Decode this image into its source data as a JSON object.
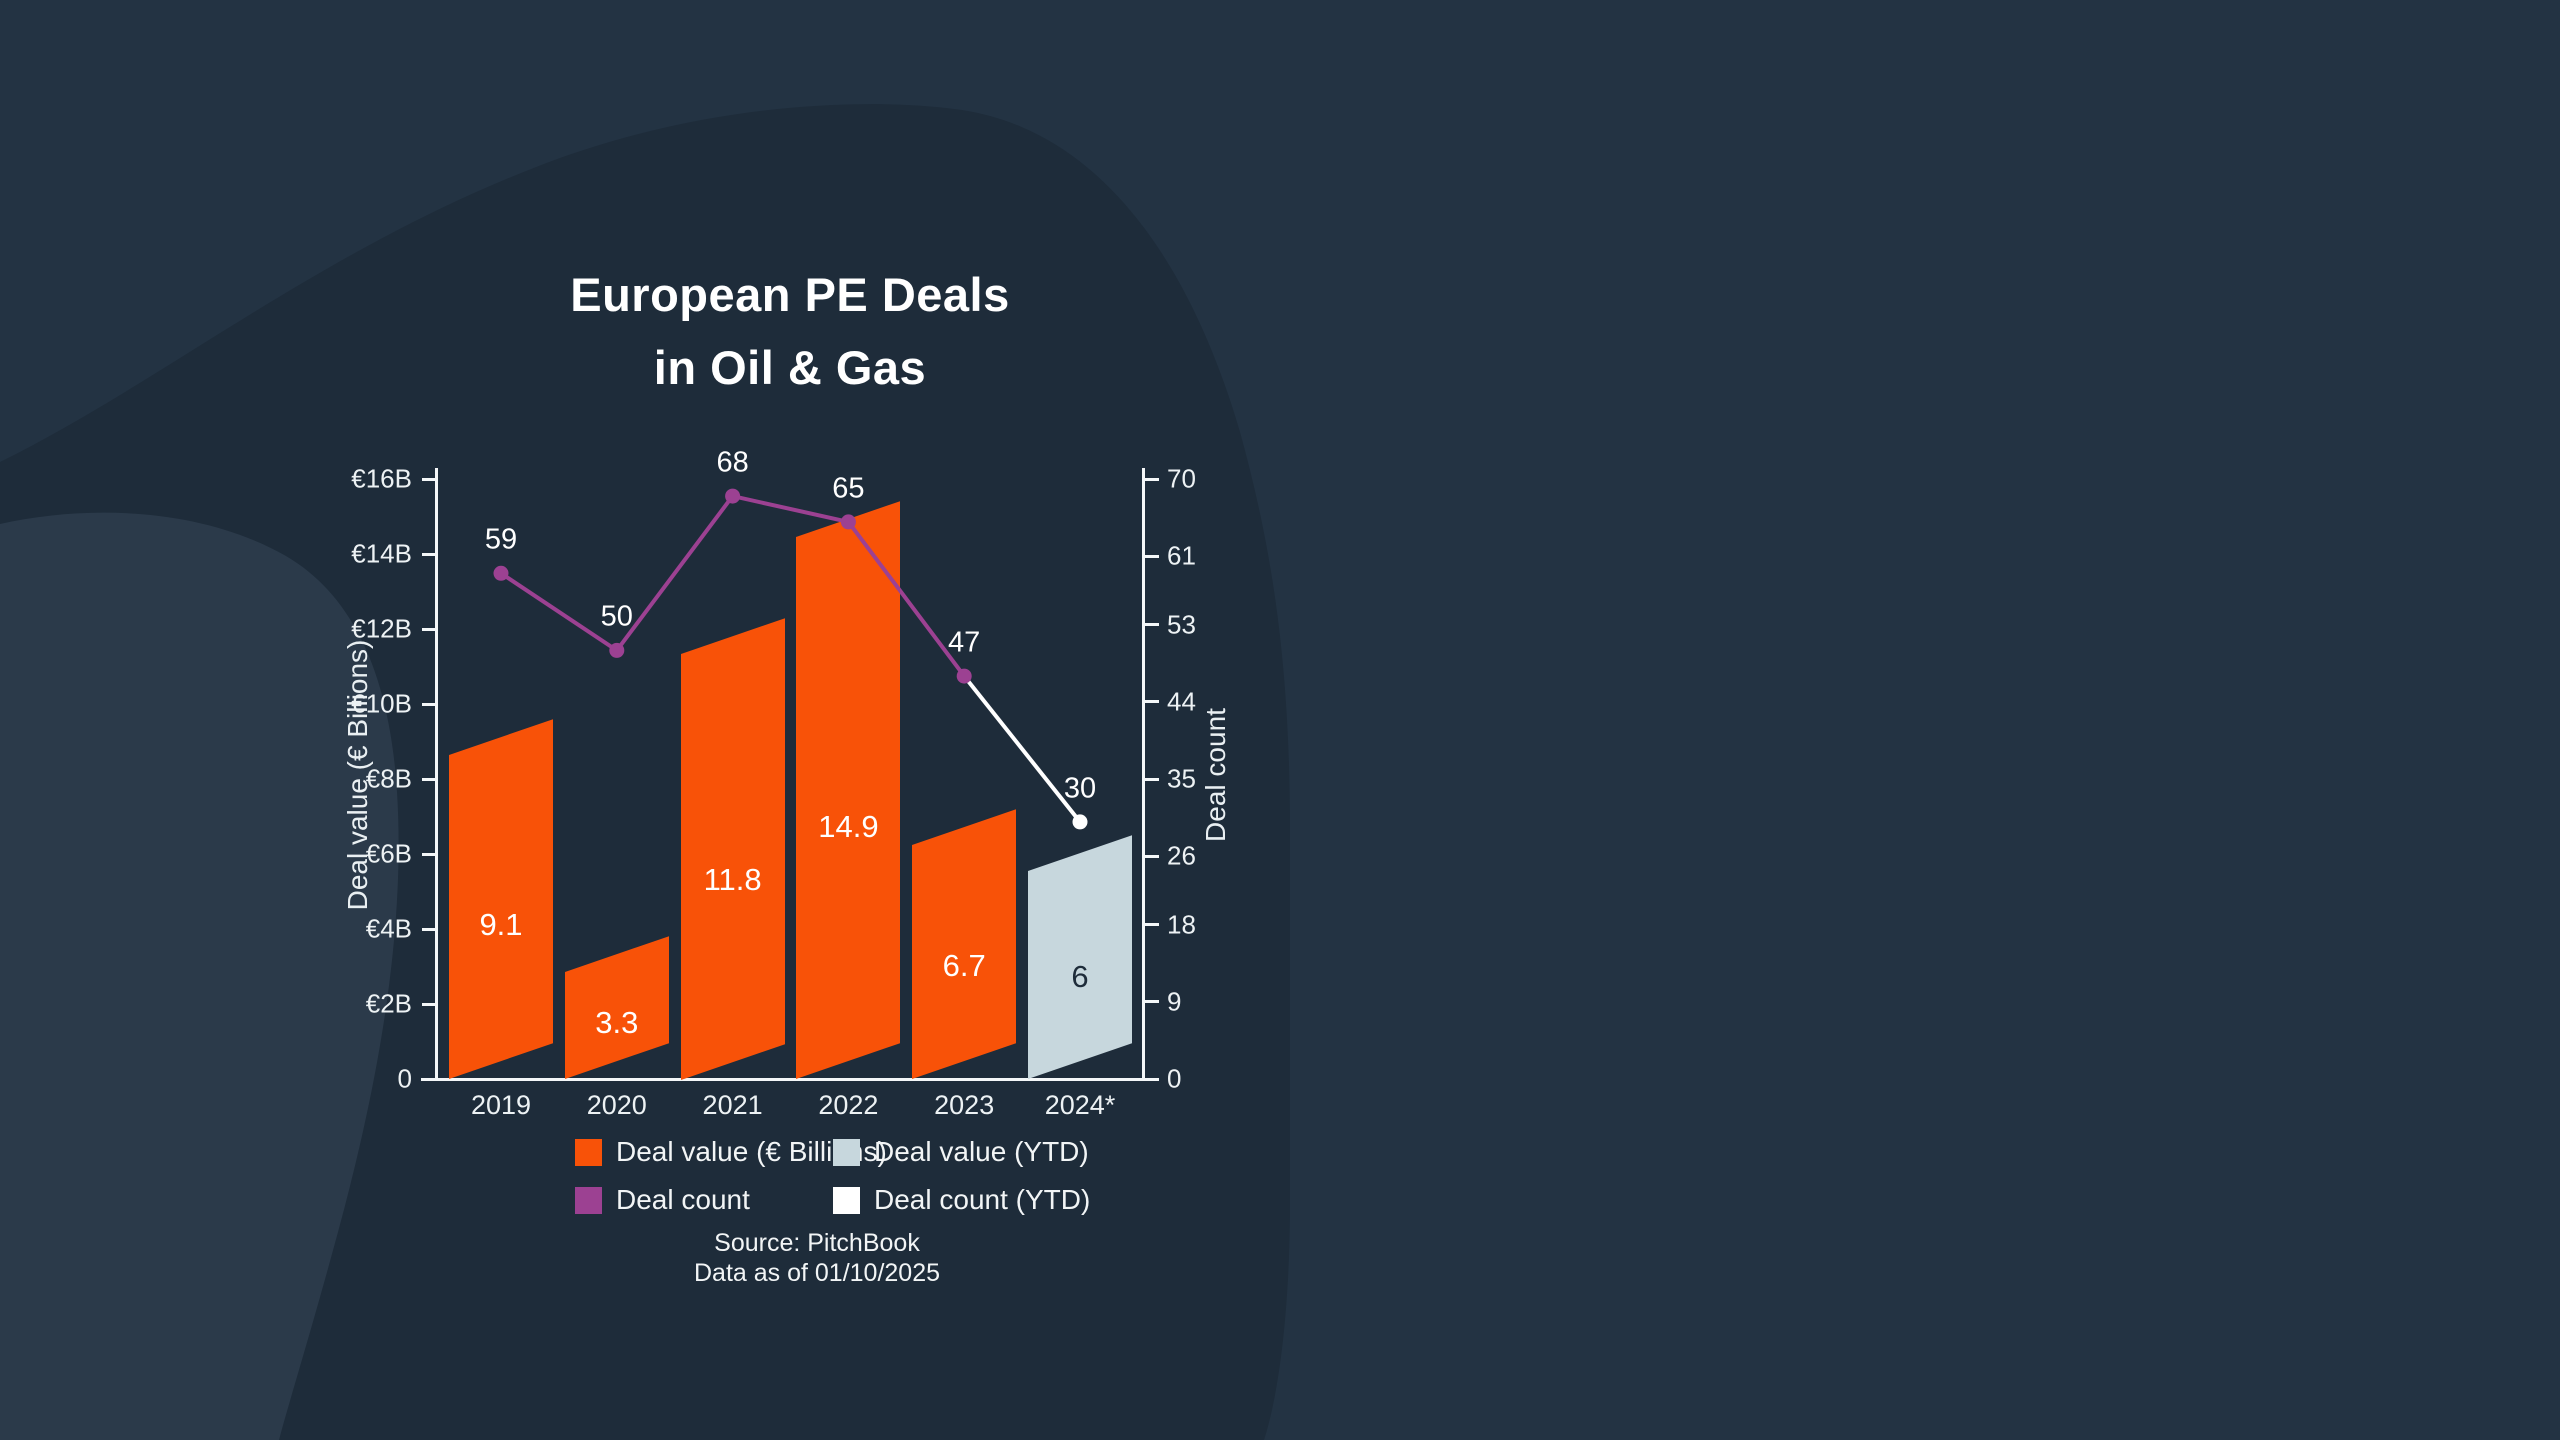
{
  "title": {
    "line1": "European PE Deals",
    "line2": "in Oil & Gas"
  },
  "chart_data": {
    "type": "combo-bar-line",
    "categories": [
      "2019",
      "2020",
      "2021",
      "2022",
      "2023",
      "2024*"
    ],
    "series": [
      {
        "name": "Deal value (€ Billions)",
        "type": "bar",
        "axis": "left",
        "values": [
          9.1,
          3.3,
          11.8,
          14.9,
          6.7,
          null
        ],
        "color": "#F85208",
        "label_color": "#FFFFFF"
      },
      {
        "name": "Deal value (YTD)",
        "type": "bar",
        "axis": "left",
        "values": [
          null,
          null,
          null,
          null,
          null,
          6
        ],
        "color": "#C7D7DD",
        "label_color": "#1E2C3A"
      },
      {
        "name": "Deal count",
        "type": "line",
        "axis": "right",
        "values": [
          59,
          50,
          68,
          65,
          47,
          null
        ],
        "color": "#9C4192"
      },
      {
        "name": "Deal count (YTD)",
        "type": "line",
        "axis": "right",
        "values": [
          null,
          null,
          null,
          null,
          47,
          30
        ],
        "color": "#FFFFFF"
      }
    ],
    "count_labels": [
      "59",
      "50",
      "68",
      "65",
      "47",
      "30"
    ],
    "left_axis": {
      "label": "Deal value (€ Billions)",
      "tick_labels": [
        "0",
        "€2B",
        "€4B",
        "€6B",
        "€8B",
        "€10B",
        "€12B",
        "€14B",
        "€16B"
      ],
      "tick_values": [
        0,
        2,
        4,
        6,
        8,
        10,
        12,
        14,
        16
      ],
      "max": 16
    },
    "right_axis": {
      "label": "Deal count",
      "tick_labels": [
        "0",
        "9",
        "18",
        "26",
        "35",
        "44",
        "53",
        "61",
        "70"
      ],
      "tick_values": [
        0,
        9,
        18,
        26,
        35,
        44,
        53,
        61,
        70
      ],
      "max": 70
    },
    "grid": false,
    "legend_position": "bottom"
  },
  "legend": {
    "items": [
      {
        "label": "Deal value (€ Billions)",
        "color": "#F85208"
      },
      {
        "label": "Deal value (YTD)",
        "color": "#C7D7DD"
      },
      {
        "label": "Deal count",
        "color": "#9C4192"
      },
      {
        "label": "Deal count (YTD)",
        "color": "#FFFFFF"
      }
    ]
  },
  "source": {
    "line1": "Source: PitchBook",
    "line2": "Data as of 01/10/2025"
  },
  "colors": {
    "page_background": "#233343",
    "blob_background": "#1E2C3A",
    "swoosh_background": "#2B3A4A",
    "axis": "#F4F7F8",
    "bar_orange": "#F85208",
    "bar_ytd_blue": "#C7D7DD",
    "line_purple": "#9C4192",
    "line_white": "#FFFFFF",
    "text": "#EDF2F4"
  }
}
